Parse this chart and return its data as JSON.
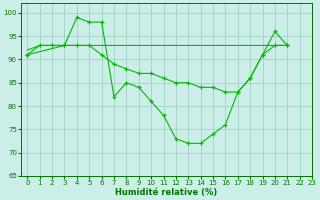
{
  "line1_x": [
    0,
    1,
    2,
    3,
    4,
    5,
    6,
    7,
    8,
    9,
    10,
    11,
    12,
    13,
    14,
    15,
    16,
    17,
    18,
    19,
    20,
    21
  ],
  "line1_y": [
    91,
    93,
    93,
    93,
    99,
    98,
    98,
    82,
    85,
    84,
    81,
    78,
    73,
    72,
    72,
    74,
    76,
    83,
    86,
    91,
    96,
    93
  ],
  "line2_x": [
    0,
    1,
    2,
    3,
    4,
    5,
    6,
    7,
    8,
    9,
    10,
    11,
    12,
    13,
    14,
    15,
    16,
    17,
    18,
    19,
    20,
    21
  ],
  "line2_y": [
    92,
    93,
    93,
    93,
    93,
    93,
    93,
    93,
    93,
    93,
    93,
    93,
    93,
    93,
    93,
    93,
    93,
    93,
    93,
    93,
    93,
    93
  ],
  "line3_x": [
    0,
    3,
    4,
    5,
    6,
    7,
    8,
    9,
    10,
    11,
    12,
    13,
    14,
    15,
    16,
    17,
    18,
    19,
    20,
    21
  ],
  "line3_y": [
    91,
    93,
    93,
    93,
    91,
    89,
    88,
    87,
    87,
    86,
    85,
    85,
    84,
    84,
    83,
    83,
    86,
    91,
    93,
    93
  ],
  "line_color": "#00bb00",
  "bg_color": "#cceee8",
  "grid_color": "#99ccbb",
  "xlabel": "Humidité relative (%)",
  "ylim": [
    65,
    102
  ],
  "xlim": [
    -0.5,
    23
  ],
  "yticks": [
    65,
    70,
    75,
    80,
    85,
    90,
    95,
    100
  ],
  "xticks": [
    0,
    1,
    2,
    3,
    4,
    5,
    6,
    7,
    8,
    9,
    10,
    11,
    12,
    13,
    14,
    15,
    16,
    17,
    18,
    19,
    20,
    21,
    22,
    23
  ]
}
